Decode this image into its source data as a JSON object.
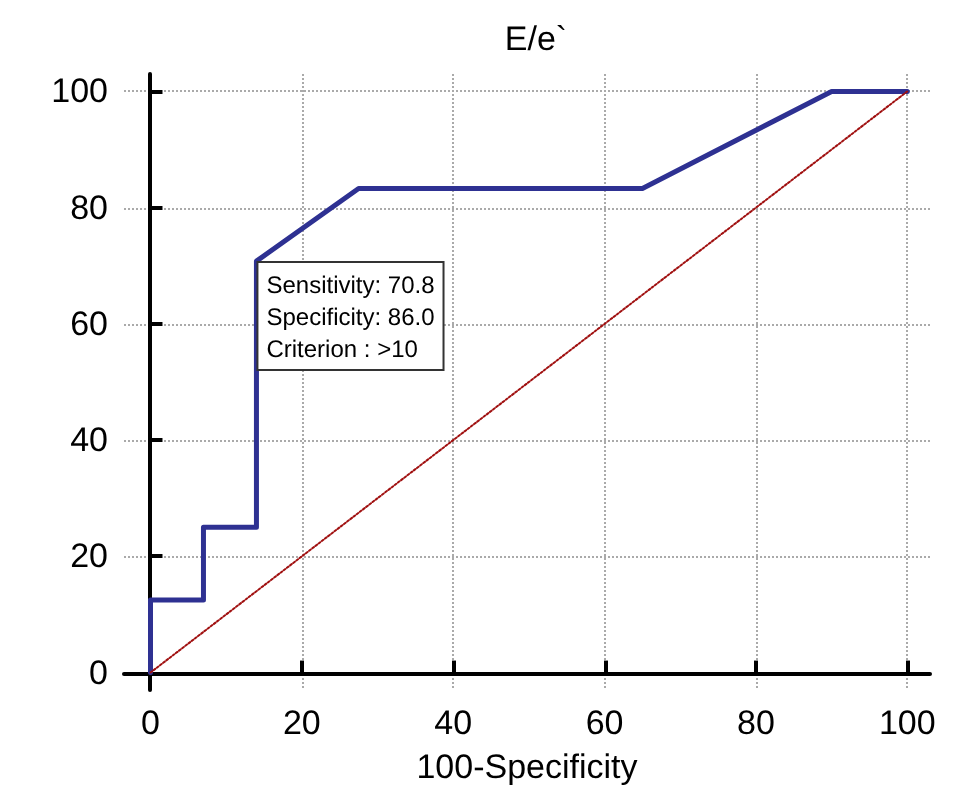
{
  "chart_data": {
    "type": "line",
    "title": "E/e`",
    "xlabel": "100-Specificity",
    "xlim": [
      -3.5,
      103
    ],
    "ylim": [
      -3,
      103
    ],
    "xticks": [
      0,
      20,
      40,
      60,
      80,
      100
    ],
    "yticks": [
      0,
      20,
      40,
      60,
      80,
      100
    ],
    "grid": true,
    "marker": "none",
    "series": [
      {
        "color": "#2e3192",
        "x": [
          0,
          0,
          7,
          7,
          14,
          14,
          27.5,
          65,
          90,
          100
        ],
        "values": [
          0,
          12.5,
          12.5,
          25,
          25,
          70.8,
          83.3,
          83.3,
          100,
          100
        ],
        "line_style": "solid"
      },
      {
        "color": "#a01010",
        "x": [
          0,
          100
        ],
        "values": [
          0,
          100
        ],
        "line_style": "dotted"
      }
    ],
    "annotations": [
      {
        "text": "Sensitivity: 70.8\nSpecificity: 86.0\nCriterion : >10",
        "x": 14,
        "y": 70.8
      }
    ]
  }
}
